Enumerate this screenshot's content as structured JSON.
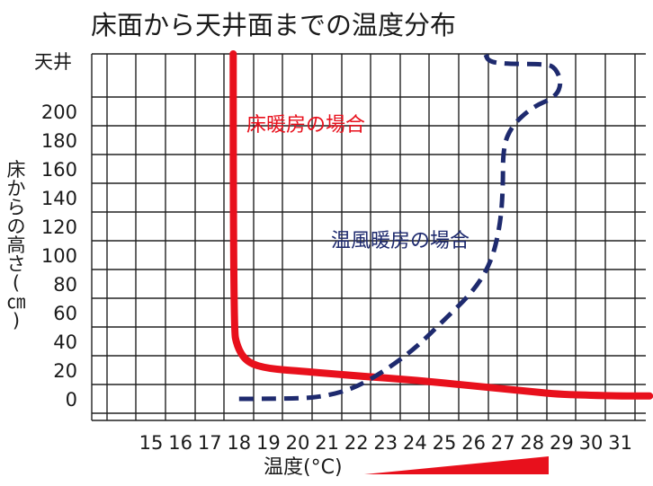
{
  "chart_data": {
    "type": "line",
    "title": "床面から天井面までの温度分布",
    "xlabel": "温度(°C)",
    "ylabel": "床からの高さ(㎝)",
    "xlim": [
      13,
      32
    ],
    "x_ticks": [
      15,
      16,
      17,
      18,
      19,
      20,
      21,
      22,
      23,
      24,
      25,
      26,
      27,
      28,
      29,
      30,
      31
    ],
    "ylim": [
      -15,
      240
    ],
    "y_ticks": [
      0,
      20,
      40,
      60,
      80,
      100,
      120,
      140,
      160,
      180,
      200
    ],
    "y_top_label": "天井",
    "grid": true,
    "legend": "inline labels",
    "series": [
      {
        "name": "床暖房の場合",
        "color": "#e8101c",
        "style": "solid",
        "points": [
          [
            17.8,
            240
          ],
          [
            17.8,
            50
          ],
          [
            17.95,
            35
          ],
          [
            18.3,
            25
          ],
          [
            19,
            21
          ],
          [
            20,
            19.5
          ],
          [
            22,
            16
          ],
          [
            24,
            13
          ],
          [
            26,
            9
          ],
          [
            28,
            5
          ],
          [
            29,
            3
          ],
          [
            31,
            2
          ],
          [
            32,
            2
          ]
        ]
      },
      {
        "name": "温風暖房の場合",
        "color": "#1e2a6e",
        "style": "dashed",
        "points": [
          [
            18,
            0
          ],
          [
            20,
            0
          ],
          [
            21,
            2
          ],
          [
            22,
            8
          ],
          [
            23,
            20
          ],
          [
            24,
            35
          ],
          [
            25,
            55
          ],
          [
            26,
            75
          ],
          [
            26.6,
            95
          ],
          [
            26.9,
            120
          ],
          [
            27,
            145
          ],
          [
            27,
            175
          ],
          [
            27.3,
            190
          ],
          [
            28,
            203
          ],
          [
            28.8,
            210
          ],
          [
            29,
            220
          ],
          [
            28.8,
            230
          ],
          [
            28.5,
            233
          ],
          [
            27,
            233
          ],
          [
            26.5,
            235
          ],
          [
            26.4,
            240
          ]
        ]
      }
    ],
    "temperature_ramp_color": "#e8101c"
  }
}
